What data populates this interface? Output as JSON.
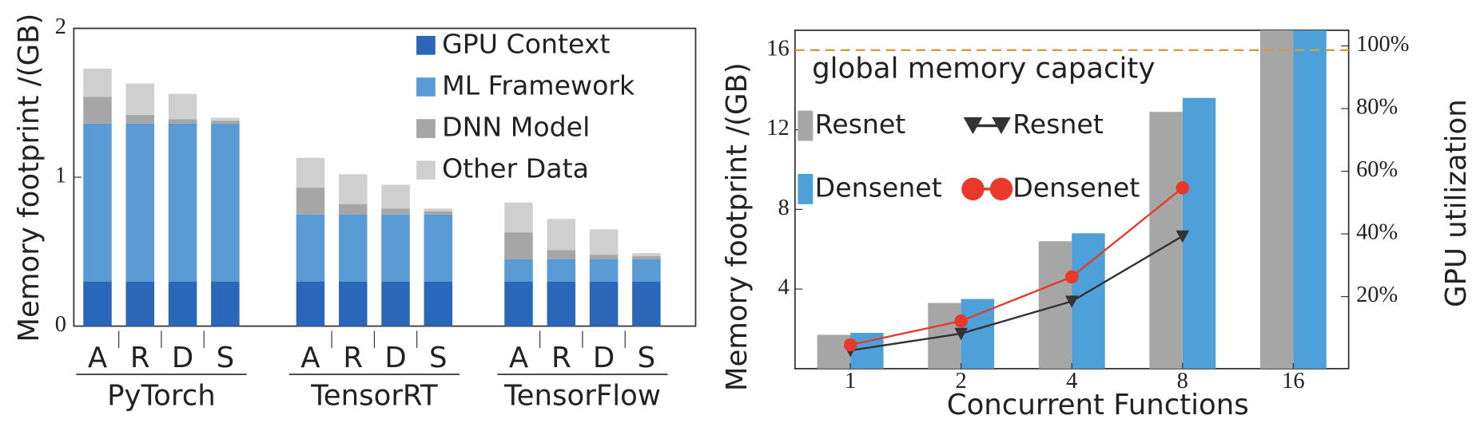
{
  "chart_data": [
    {
      "type": "stacked_bar",
      "ylabel": "Memory footprint /(GB)",
      "categories": [
        "A",
        "R",
        "D",
        "S",
        "A",
        "R",
        "D",
        "S",
        "A",
        "R",
        "D",
        "S"
      ],
      "groups": [
        "PyTorch",
        "TensorRT",
        "TensorFlow"
      ],
      "series": [
        {
          "name": "GPU Context",
          "color": "#2a67b8",
          "values": [
            0.3,
            0.3,
            0.3,
            0.3,
            0.3,
            0.3,
            0.3,
            0.3,
            0.3,
            0.3,
            0.3,
            0.3
          ]
        },
        {
          "name": "ML Framework",
          "color": "#5b9bd5",
          "values": [
            1.06,
            1.06,
            1.06,
            1.06,
            0.45,
            0.45,
            0.45,
            0.45,
            0.15,
            0.15,
            0.15,
            0.15
          ]
        },
        {
          "name": "DNN Model",
          "color": "#a6a6a6",
          "values": [
            0.18,
            0.06,
            0.03,
            0.02,
            0.18,
            0.07,
            0.04,
            0.02,
            0.18,
            0.06,
            0.03,
            0.02
          ]
        },
        {
          "name": "Other Data",
          "color": "#cfcfcf",
          "values": [
            0.19,
            0.21,
            0.17,
            0.02,
            0.2,
            0.2,
            0.16,
            0.02,
            0.2,
            0.21,
            0.17,
            0.02
          ]
        }
      ],
      "ylim": [
        0,
        2
      ],
      "yticks": [
        0,
        1,
        2
      ],
      "legend": "upper right"
    },
    {
      "type": "bar_line",
      "ylabel": "Memory footprint /(GB)",
      "y2label": "GPU utilization",
      "xlabel": "Concurrent Functions",
      "categories": [
        "1",
        "2",
        "4",
        "8",
        "16"
      ],
      "annotation": "global memory capacity",
      "capacity": 16,
      "capacity_color": "#c8a040",
      "series": [
        {
          "name": "Resnet",
          "kind": "bar",
          "color": "#a6a6a6",
          "values": [
            1.7,
            3.3,
            6.4,
            12.9,
            17
          ]
        },
        {
          "name": "Densenet",
          "kind": "bar",
          "color": "#4ea0d8",
          "values": [
            1.8,
            3.5,
            6.8,
            13.6,
            17
          ]
        },
        {
          "name": "Resnet",
          "kind": "line",
          "axis": "y2",
          "color": "#333333",
          "values": [
            2.8,
            8.2,
            18.5,
            39.3,
            null
          ]
        },
        {
          "name": "Densenet",
          "kind": "line",
          "axis": "y2",
          "color": "#e83a2a",
          "values": [
            4.6,
            12.2,
            26.3,
            54.7,
            null
          ]
        }
      ],
      "ylim": [
        0,
        17
      ],
      "yticks": [
        4,
        8,
        12,
        16
      ],
      "y2lim": [
        -3,
        105
      ],
      "y2ticks": [
        {
          "value": 20,
          "label": "20%"
        },
        {
          "value": 40,
          "label": "40%"
        },
        {
          "value": 60,
          "label": "60%"
        },
        {
          "value": 80,
          "label": "80%"
        },
        {
          "value": 100,
          "label": "100%"
        }
      ]
    }
  ]
}
